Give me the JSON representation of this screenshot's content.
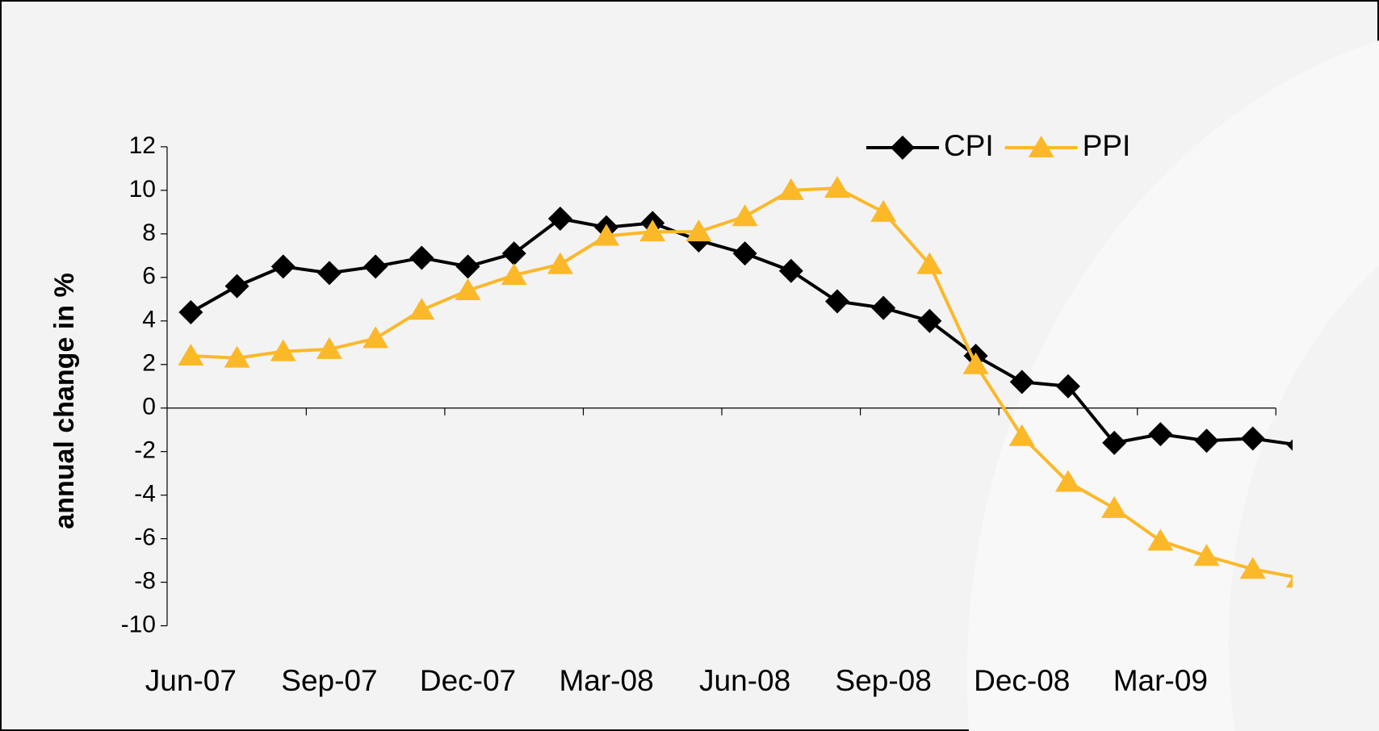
{
  "chart_data": {
    "type": "line",
    "y_label": "annual change in %",
    "categories": [
      "Jun-07",
      null,
      null,
      "Sep-07",
      null,
      null,
      "Dec-07",
      null,
      null,
      "Mar-08",
      null,
      null,
      "Jun-08",
      null,
      null,
      "Sep-08",
      null,
      null,
      "Dec-08",
      null,
      null,
      "Mar-09",
      null,
      null,
      null
    ],
    "series": [
      {
        "name": "CPI",
        "color": "#000000",
        "marker": "diamond",
        "values": [
          4.4,
          5.6,
          6.5,
          6.2,
          6.5,
          6.9,
          6.5,
          7.1,
          8.7,
          8.3,
          8.5,
          7.7,
          7.1,
          6.3,
          4.9,
          4.6,
          4.0,
          2.4,
          1.2,
          1.0,
          -1.6,
          -1.2,
          -1.5,
          -1.4,
          -1.7
        ]
      },
      {
        "name": "PPI",
        "color": "#fbb829",
        "marker": "triangle",
        "values": [
          2.4,
          2.3,
          2.6,
          2.7,
          3.2,
          4.5,
          5.4,
          6.1,
          6.6,
          7.9,
          8.1,
          8.1,
          8.8,
          10.0,
          10.1,
          9.0,
          6.6,
          2.0,
          -1.3,
          -3.4,
          -4.6,
          -6.1,
          -6.8,
          -7.4,
          -7.8
        ]
      }
    ],
    "ylim": [
      -10,
      12
    ],
    "yticks": [
      -10,
      -8,
      -6,
      -4,
      -2,
      0,
      2,
      4,
      6,
      8,
      10,
      12
    ],
    "legend": "top-right"
  }
}
